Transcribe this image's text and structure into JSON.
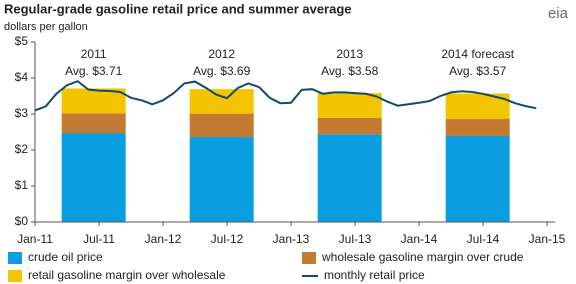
{
  "chart_data": {
    "type": "bar",
    "title": "Regular-grade gasoline retail price and summer average",
    "subtitle": "dollars per gallon",
    "logo": "eia",
    "stacked": true,
    "ylim": [
      0,
      5
    ],
    "yticks": [
      {
        "value": 0,
        "label": "$0"
      },
      {
        "value": 1,
        "label": "$1"
      },
      {
        "value": 2,
        "label": "$2"
      },
      {
        "value": 3,
        "label": "$3"
      },
      {
        "value": 4,
        "label": "$4"
      },
      {
        "value": 5,
        "label": "$5"
      }
    ],
    "xticks": [
      "Jan-11",
      "Jul-11",
      "Jan-12",
      "Jul-12",
      "Jan-13",
      "Jul-13",
      "Jan-14",
      "Jul-14",
      "Jan-15"
    ],
    "categories": [
      "2011",
      "2012",
      "2013",
      "2014 forecast"
    ],
    "bar_x": [
      "Jul-11",
      "Jul-12",
      "Jul-13",
      "Jul-14"
    ],
    "series": [
      {
        "name": "crude oil price",
        "color": "#0a9de0",
        "values": [
          2.47,
          2.36,
          2.44,
          2.39
        ]
      },
      {
        "name": "wholesale gasoline margin over crude",
        "color": "#c47a30",
        "values": [
          0.55,
          0.65,
          0.45,
          0.47
        ]
      },
      {
        "name": "retail gasoline margin over wholesale",
        "color": "#f5c400",
        "values": [
          0.69,
          0.68,
          0.69,
          0.71
        ]
      }
    ],
    "averages": {
      "values": [
        3.71,
        3.69,
        3.58,
        3.57
      ],
      "value_labels": [
        "Avg. $3.71",
        "Avg. $3.69",
        "Avg. $3.58",
        "Avg. $3.57"
      ]
    },
    "line": {
      "type": "line",
      "name": "monthly retail price",
      "color": "#0e4c6c",
      "x": [
        "Jan-11",
        "Feb-11",
        "Mar-11",
        "Apr-11",
        "May-11",
        "Jun-11",
        "Jul-11",
        "Aug-11",
        "Sep-11",
        "Oct-11",
        "Nov-11",
        "Dec-11",
        "Jan-12",
        "Feb-12",
        "Mar-12",
        "Apr-12",
        "May-12",
        "Jun-12",
        "Jul-12",
        "Aug-12",
        "Sep-12",
        "Oct-12",
        "Nov-12",
        "Dec-12",
        "Jan-13",
        "Feb-13",
        "Mar-13",
        "Apr-13",
        "May-13",
        "Jun-13",
        "Jul-13",
        "Aug-13",
        "Sep-13",
        "Oct-13",
        "Nov-13",
        "Dec-13",
        "Jan-14",
        "Feb-14",
        "Mar-14",
        "Apr-14",
        "May-14",
        "Jun-14",
        "Jul-14",
        "Aug-14",
        "Sep-14",
        "Oct-14",
        "Nov-14",
        "Dec-14"
      ],
      "values": [
        3.1,
        3.21,
        3.56,
        3.8,
        3.91,
        3.68,
        3.65,
        3.64,
        3.61,
        3.45,
        3.38,
        3.27,
        3.38,
        3.58,
        3.85,
        3.9,
        3.73,
        3.54,
        3.44,
        3.72,
        3.85,
        3.75,
        3.45,
        3.3,
        3.31,
        3.67,
        3.69,
        3.56,
        3.6,
        3.6,
        3.58,
        3.56,
        3.49,
        3.35,
        3.23,
        3.27,
        3.31,
        3.36,
        3.5,
        3.6,
        3.63,
        3.61,
        3.56,
        3.49,
        3.42,
        3.3,
        3.22,
        3.16
      ]
    },
    "grid": false,
    "legend": "bottom"
  }
}
